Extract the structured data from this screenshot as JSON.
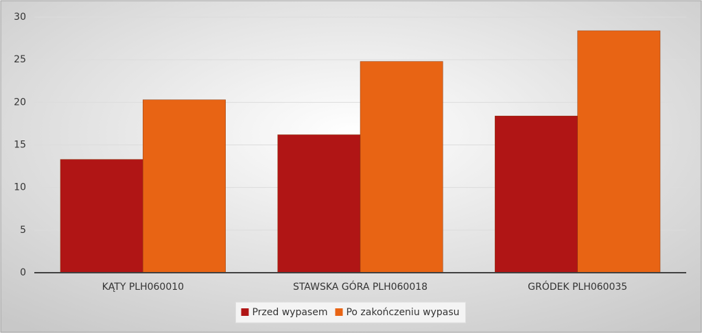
{
  "chart_data": {
    "type": "bar",
    "categories": [
      "KĄTY PLH060010",
      "STAWSKA GÓRA PLH060018",
      "GRÓDEK PLH060035"
    ],
    "series": [
      {
        "name": "Przed wypasem",
        "color": "#b01515",
        "values": [
          13.3,
          16.2,
          18.4
        ]
      },
      {
        "name": "Po zakończeniu wypasu",
        "color": "#e86414",
        "values": [
          20.3,
          24.8,
          28.4
        ]
      }
    ],
    "ylim": [
      0,
      30
    ],
    "yticks": [
      0,
      5,
      10,
      15,
      20,
      25,
      30
    ],
    "grid": true,
    "legend": "bottom"
  }
}
